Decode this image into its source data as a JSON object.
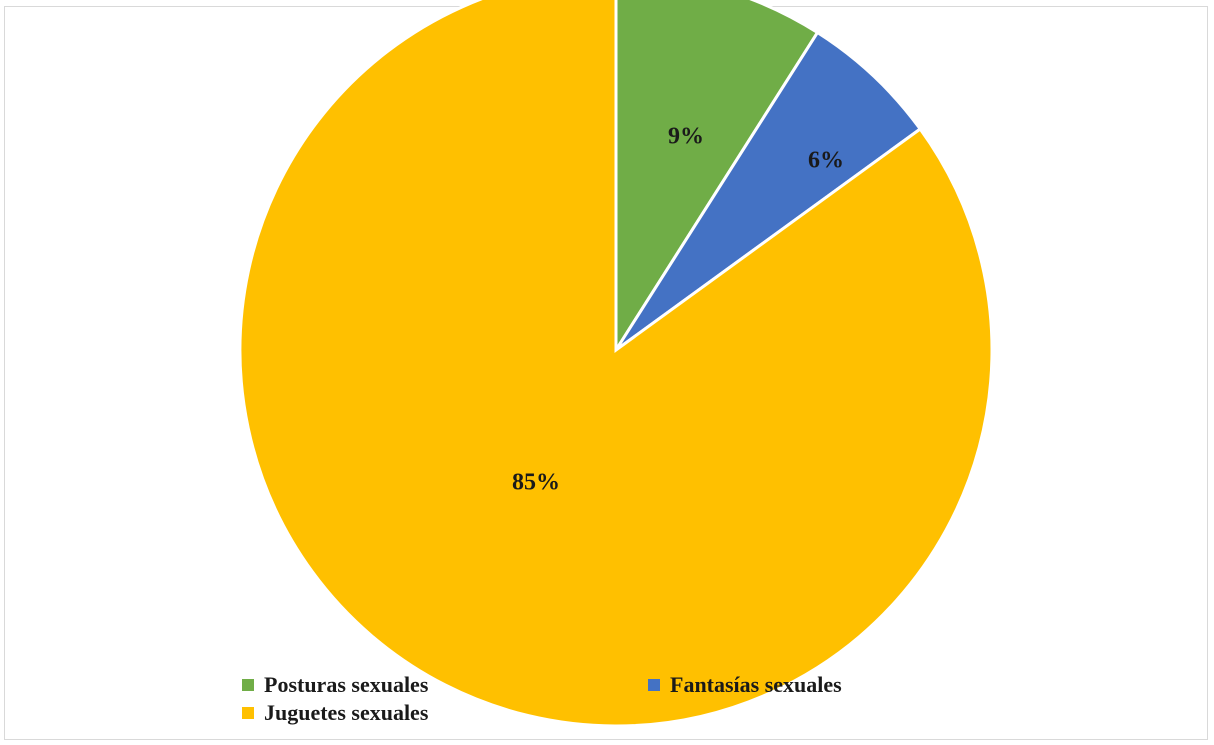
{
  "chart_data": {
    "type": "pie",
    "title": "",
    "start_angle_deg": 0,
    "direction": "clockwise",
    "slices": [
      {
        "label": "Posturas sexuales",
        "value": 9,
        "value_label": "9%",
        "color": "#70ad47"
      },
      {
        "label": "Fantasías sexuales",
        "value": 6,
        "value_label": "6%",
        "color": "#4472c4"
      },
      {
        "label": "Juguetes sexuales",
        "value": 85,
        "value_label": "85%",
        "color": "#ffc000"
      }
    ],
    "slice_border_color": "#ffffff",
    "legend": {
      "placement": "bottom-left",
      "items": [
        "Posturas sexuales",
        "Fantasías sexuales",
        "Juguetes sexuales"
      ]
    }
  }
}
